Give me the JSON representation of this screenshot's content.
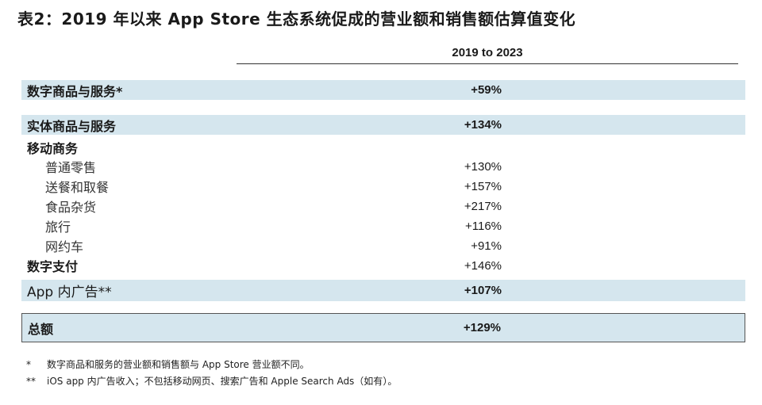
{
  "title": "表2：2019 年以来 App Store 生态系统促成的营业额和销售额估算值变化",
  "column_header": "2019 to 2023",
  "rows": [
    {
      "label": "数字商品与服务*",
      "value": "+59%"
    },
    {
      "label": "实体商品与服务",
      "value": "+134%"
    },
    {
      "label": "移动商务",
      "value": ""
    },
    {
      "label": "普通零售",
      "value": "+130%"
    },
    {
      "label": "送餐和取餐",
      "value": "+157%"
    },
    {
      "label": "食品杂货",
      "value": "+217%"
    },
    {
      "label": "旅行",
      "value": "+116%"
    },
    {
      "label": "网约车",
      "value": "+91%"
    },
    {
      "label": "数字支付",
      "value": "+146%"
    },
    {
      "label": "App 内广告**",
      "value": "+107%"
    },
    {
      "label": "总额",
      "value": "+129%"
    }
  ],
  "footnotes": [
    {
      "mark": "*",
      "text": "数字商品和服务的营业额和销售额与 App Store 营业额不同。"
    },
    {
      "mark": "**",
      "text": "iOS app 内广告收入；不包括移动网页、搜索广告和 Apple Search Ads（如有）。"
    }
  ]
}
